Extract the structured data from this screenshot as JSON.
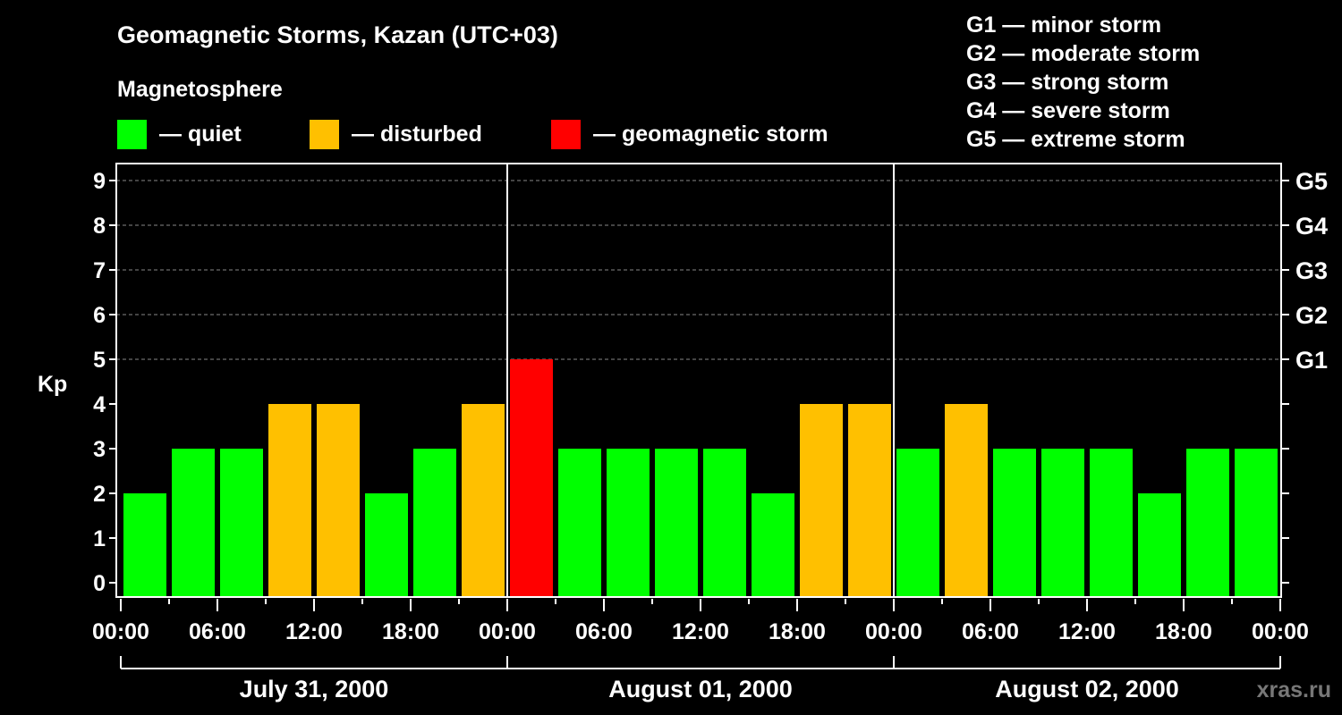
{
  "chart_data": {
    "type": "bar",
    "title": "Geomagnetic Storms, Kazan (UTC+03)",
    "subtitle": "Magnetosphere",
    "ylabel": "Kp",
    "ylim": [
      0,
      9
    ],
    "yticks": [
      "0",
      "1",
      "2",
      "3",
      "4",
      "5",
      "6",
      "7",
      "8",
      "9"
    ],
    "right_ticks": [
      {
        "kp": 5,
        "label": "G1"
      },
      {
        "kp": 6,
        "label": "G2"
      },
      {
        "kp": 7,
        "label": "G3"
      },
      {
        "kp": 8,
        "label": "G4"
      },
      {
        "kp": 9,
        "label": "G5"
      }
    ],
    "xticks": [
      "00:00",
      "06:00",
      "12:00",
      "18:00",
      "00:00",
      "06:00",
      "12:00",
      "18:00",
      "00:00",
      "06:00",
      "12:00",
      "18:00",
      "00:00"
    ],
    "days": [
      "July 31, 2000",
      "August 01, 2000",
      "August 02, 2000"
    ],
    "interval_hours": 3,
    "values": [
      2,
      3,
      3,
      4,
      4,
      2,
      3,
      4,
      5,
      3,
      3,
      3,
      3,
      2,
      4,
      4,
      3,
      4,
      3,
      3,
      3,
      2,
      3,
      3
    ],
    "grid": "dashed horizontal at Kp 5-9",
    "legend": [
      {
        "label": "— quiet",
        "color": "#00ff00"
      },
      {
        "label": "— disturbed",
        "color": "#ffc000"
      },
      {
        "label": "— geomagnetic storm",
        "color": "#ff0000"
      }
    ],
    "scale": [
      "G1 — minor storm",
      "G2 — moderate storm",
      "G3 — strong storm",
      "G4 — severe storm",
      "G5 — extreme storm"
    ],
    "watermark": "xras.ru"
  },
  "colors": {
    "quiet": "#00ff00",
    "disturbed": "#ffc000",
    "storm": "#ff0000"
  }
}
